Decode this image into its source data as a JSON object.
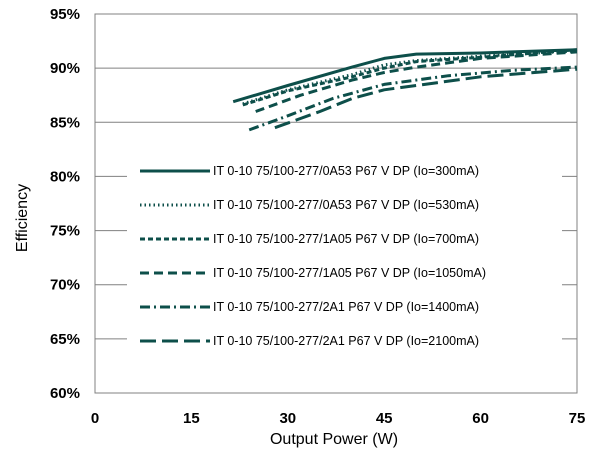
{
  "chart_data": {
    "type": "line",
    "title": "",
    "xlabel": "Output Power (W)",
    "ylabel": "Efficiency",
    "xlim": [
      0,
      75
    ],
    "ylim": [
      60,
      95
    ],
    "x_ticks": [
      0,
      15,
      30,
      45,
      60,
      75
    ],
    "x_tick_labels": [
      "0",
      "15",
      "30",
      "45",
      "60",
      "75"
    ],
    "y_ticks": [
      60,
      65,
      70,
      75,
      80,
      85,
      90,
      95
    ],
    "y_tick_labels": [
      "60%",
      "65%",
      "70%",
      "75%",
      "80%",
      "85%",
      "90%",
      "95%"
    ],
    "grid": "horizontal",
    "legend_position": "center",
    "line_color": "#0d4f4a",
    "series": [
      {
        "name": "IT 0-10 75/100-277/0A53 P67 V DP (Io=300mA)",
        "dash": "solid",
        "x": [
          21.5,
          30,
          40,
          45,
          50,
          60,
          75
        ],
        "y": [
          86.9,
          88.4,
          90.1,
          90.9,
          91.3,
          91.4,
          91.7
        ]
      },
      {
        "name": "IT 0-10 75/100-277/0A53 P67 V DP (Io=530mA)",
        "dash": "dotted",
        "x": [
          23,
          30,
          40,
          45,
          50,
          60,
          75
        ],
        "y": [
          86.7,
          88.0,
          89.4,
          90.3,
          90.7,
          91.1,
          91.6
        ]
      },
      {
        "name": "IT 0-10 75/100-277/1A05 P67 V DP (Io=700mA)",
        "dash": "short-dash",
        "x": [
          23,
          30,
          40,
          45,
          50,
          60,
          75
        ],
        "y": [
          86.6,
          87.9,
          89.2,
          90.0,
          90.6,
          91.0,
          91.7
        ]
      },
      {
        "name": "IT 0-10 75/100-277/1A05 P67 V DP (Io=1050mA)",
        "dash": "dash",
        "x": [
          25,
          32,
          40,
          45,
          50,
          60,
          75
        ],
        "y": [
          86.0,
          87.5,
          88.9,
          89.6,
          90.1,
          90.9,
          91.5
        ]
      },
      {
        "name": "IT 0-10 75/100-277/2A1 P67 V DP (Io=1400mA)",
        "dash": "dash-dot",
        "x": [
          24,
          30,
          37,
          45,
          55,
          65,
          75
        ],
        "y": [
          84.3,
          85.6,
          87.2,
          88.5,
          89.3,
          89.8,
          90.1
        ]
      },
      {
        "name": "IT 0-10 75/100-277/2A1 P67 V DP (Io=2100mA)",
        "dash": "long-dash",
        "x": [
          28,
          35,
          40,
          45,
          50,
          60,
          75
        ],
        "y": [
          84.5,
          86.0,
          87.2,
          88.0,
          88.4,
          89.2,
          89.9
        ]
      }
    ]
  }
}
